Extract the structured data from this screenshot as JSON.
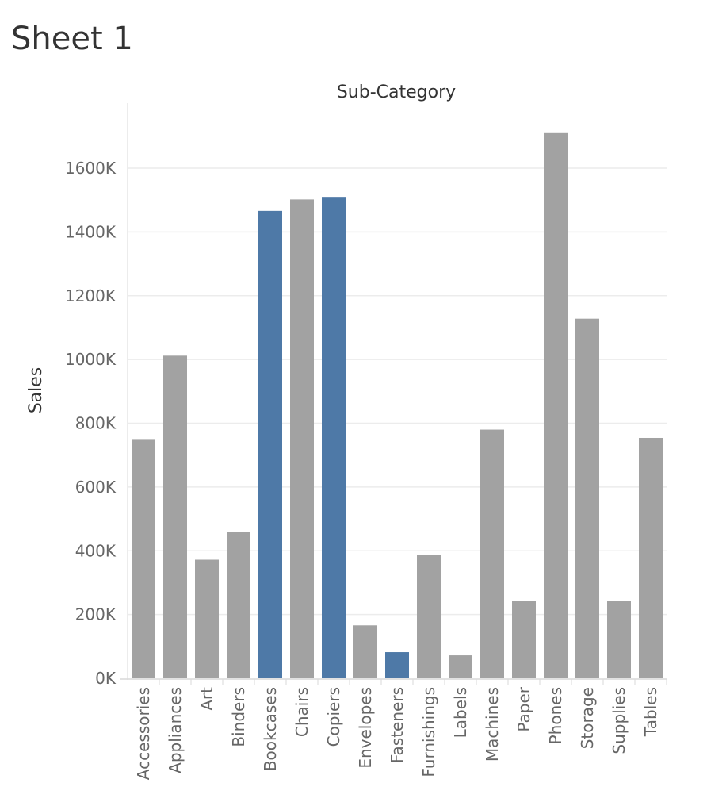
{
  "sheet": {
    "title": "Sheet 1"
  },
  "chart_data": {
    "type": "bar",
    "column_header": "Sub-Category",
    "ylabel": "Sales",
    "xlabel": "",
    "ylim": [
      0,
      1800000
    ],
    "y_ticks": [
      0,
      200000,
      400000,
      600000,
      800000,
      1000000,
      1200000,
      1400000,
      1600000
    ],
    "y_tick_labels": [
      "0K",
      "200K",
      "400K",
      "600K",
      "800K",
      "1000K",
      "1200K",
      "1400K",
      "1600K"
    ],
    "grid": "horizontal",
    "categories": [
      "Accessories",
      "Appliances",
      "Art",
      "Binders",
      "Bookcases",
      "Chairs",
      "Copiers",
      "Envelopes",
      "Fasteners",
      "Furnishings",
      "Labels",
      "Machines",
      "Paper",
      "Phones",
      "Storage",
      "Supplies",
      "Tables"
    ],
    "values": [
      748000,
      1012000,
      372000,
      460000,
      1466000,
      1502000,
      1510000,
      166000,
      82000,
      386000,
      72000,
      780000,
      242000,
      1710000,
      1128000,
      242000,
      754000
    ],
    "highlighted": [
      "Bookcases",
      "Copiers",
      "Fasteners"
    ],
    "colors": {
      "default": "#a2a2a2",
      "highlight": "#4e79a7",
      "grid": "#ececec",
      "axis": "#d9d9d9"
    }
  }
}
